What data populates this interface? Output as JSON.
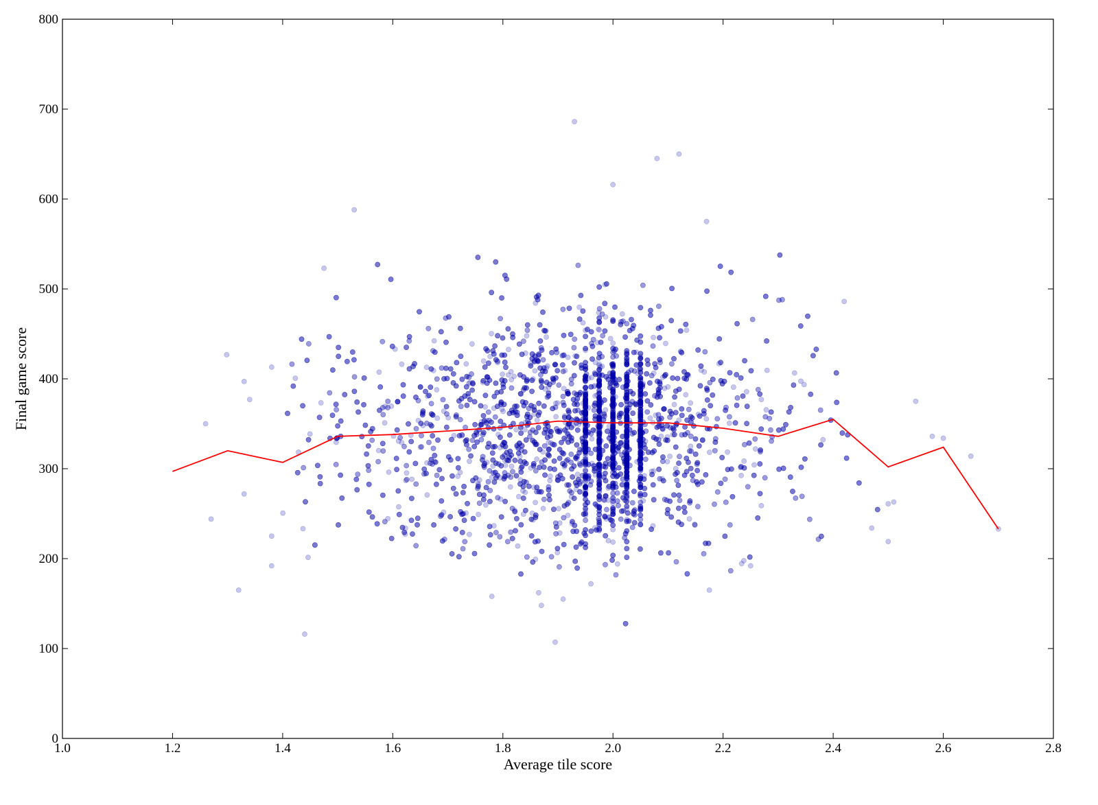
{
  "chart_data": {
    "type": "scatter",
    "title": "",
    "xlabel": "Average tile score",
    "ylabel": "Final game score",
    "xlim": [
      1.0,
      2.8
    ],
    "ylim": [
      0,
      800
    ],
    "xticks": [
      "1.0",
      "1.2",
      "1.4",
      "1.6",
      "1.8",
      "2.0",
      "2.2",
      "2.4",
      "2.6",
      "2.8"
    ],
    "yticks": [
      "0",
      "100",
      "200",
      "300",
      "400",
      "500",
      "600",
      "700",
      "800"
    ],
    "grid": false,
    "legend": "none",
    "colors": {
      "points": "#0000aa",
      "trend": "#ff0000",
      "axes": "#000000"
    },
    "series": [
      {
        "type": "scatter",
        "point_opacity": 0.22,
        "cloud": {
          "x_mean": 1.9,
          "x_sd": 0.2,
          "y_mean": 340,
          "y_sd": 68,
          "n": 5200
        },
        "column_clusters": [
          1.95,
          1.975,
          2.0,
          2.025,
          2.05
        ],
        "outliers": [
          [
            1.26,
            350
          ],
          [
            1.27,
            244
          ],
          [
            1.32,
            165
          ],
          [
            1.33,
            397
          ],
          [
            1.33,
            272
          ],
          [
            1.34,
            377
          ],
          [
            1.38,
            413
          ],
          [
            1.38,
            192
          ],
          [
            1.38,
            225
          ],
          [
            1.44,
            116
          ],
          [
            1.475,
            523
          ],
          [
            1.53,
            588
          ],
          [
            1.78,
            158
          ],
          [
            1.865,
            162
          ],
          [
            1.87,
            148
          ],
          [
            1.895,
            107
          ],
          [
            1.93,
            686
          ],
          [
            1.96,
            172
          ],
          [
            2.0,
            616
          ],
          [
            2.08,
            645
          ],
          [
            2.12,
            650
          ],
          [
            2.17,
            575
          ],
          [
            2.175,
            165
          ],
          [
            2.25,
            192
          ],
          [
            2.42,
            486
          ],
          [
            2.47,
            234
          ],
          [
            2.5,
            219
          ],
          [
            2.5,
            261
          ],
          [
            2.51,
            263
          ],
          [
            2.55,
            375
          ],
          [
            2.58,
            336
          ],
          [
            2.6,
            334
          ],
          [
            2.65,
            314
          ],
          [
            2.7,
            233
          ]
        ]
      },
      {
        "type": "line",
        "x": [
          1.2,
          1.3,
          1.4,
          1.5,
          1.6,
          1.7,
          1.8,
          1.9,
          2.0,
          2.1,
          2.2,
          2.3,
          2.4,
          2.5,
          2.6,
          2.7
        ],
        "values": [
          297,
          320,
          307,
          336,
          338,
          342,
          346,
          353,
          351,
          351,
          345,
          336,
          355,
          302,
          324,
          233
        ]
      }
    ]
  }
}
